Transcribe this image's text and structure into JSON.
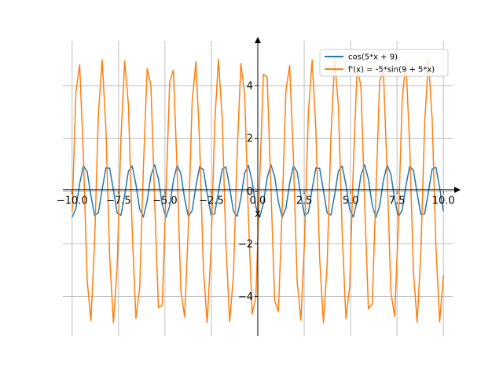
{
  "chart_data": {
    "type": "line",
    "title": "",
    "xlabel": "x",
    "ylabel": "",
    "xlim": [
      -10.5,
      10.5
    ],
    "ylim": [
      -5.5,
      5.7
    ],
    "x_ticks": [
      -10.0,
      -7.5,
      -5.0,
      -2.5,
      0.0,
      2.5,
      5.0,
      7.5,
      10.0
    ],
    "x_tick_labels": [
      "−10.0",
      "−7.5",
      "−5.0",
      "−2.5",
      "0.0",
      "2.5",
      "5.0",
      "7.5",
      "10.0"
    ],
    "y_ticks": [
      -4,
      -2,
      0,
      2,
      4
    ],
    "y_tick_labels": [
      "−4",
      "−2",
      "0",
      "2",
      "4"
    ],
    "grid": true,
    "legend_position": "top-right",
    "x_domain": [
      -10,
      10
    ],
    "sample_count": 100,
    "series": [
      {
        "name": "cos(5*x + 9)",
        "color": "#1f77b4",
        "function": "cos(5*x + 9)"
      },
      {
        "name": "f'(x) = -5*sin(9 + 5*x)",
        "color": "#ff7f0e",
        "function": "-5*sin(9 + 5*x)"
      }
    ]
  }
}
